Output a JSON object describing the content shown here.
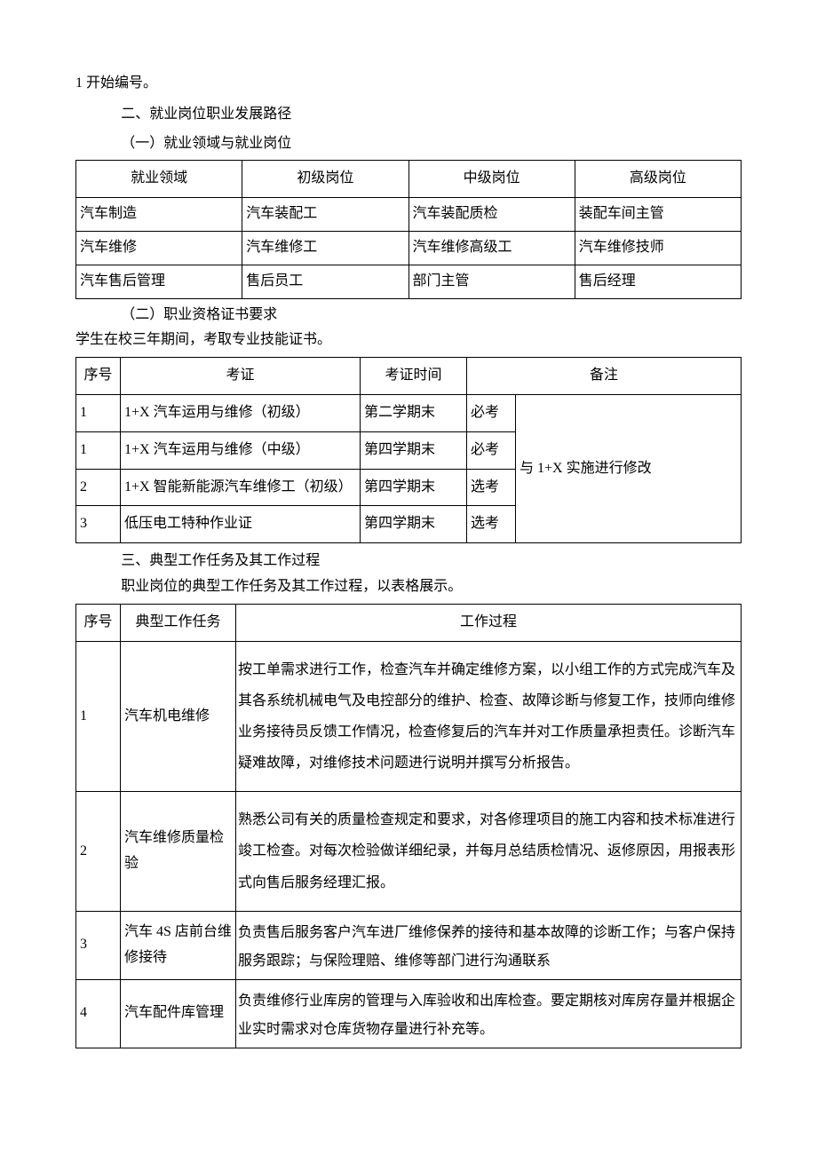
{
  "text": {
    "line1": "1 开始编号。",
    "heading2": "二、就业岗位职业发展路径",
    "sub21": "（一）就业领域与就业岗位",
    "sub22": "（二）职业资格证书要求",
    "sub22_note": "学生在校三年期间，考取专业技能证书。",
    "heading3": "三、典型工作任务及其工作过程",
    "heading3_note": "职业岗位的典型工作任务及其工作过程，以表格展示。"
  },
  "table1": {
    "headers": [
      "就业领域",
      "初级岗位",
      "中级岗位",
      "高级岗位"
    ],
    "rows": [
      [
        "汽车制造",
        "汽车装配工",
        "汽车装配质检",
        "装配车间主管"
      ],
      [
        "汽车维修",
        "汽车维修工",
        "汽车维修高级工",
        "汽车维修技师"
      ],
      [
        "汽车售后管理",
        "售后员工",
        "部门主管",
        "售后经理"
      ]
    ]
  },
  "table2": {
    "headers": [
      "序号",
      "考证",
      "考证时间",
      "备注"
    ],
    "note_merge": "与 1+X 实施进行修改",
    "rows": [
      {
        "seq": "1",
        "cert": "1+X 汽车运用与维修（初级）",
        "time": "第二学期末",
        "req": "必考"
      },
      {
        "seq": "1",
        "cert": "1+X 汽车运用与维修（中级）",
        "time": "第四学期末",
        "req": "必考"
      },
      {
        "seq": "2",
        "cert": "1+X 智能新能源汽车维修工（初级）",
        "time": "第四学期末",
        "req": "选考"
      },
      {
        "seq": "3",
        "cert": "低压电工特种作业证",
        "time": "第四学期末",
        "req": "选考"
      }
    ]
  },
  "table3": {
    "headers": [
      "序号",
      "典型工作任务",
      "工作过程"
    ],
    "rows": [
      {
        "seq": "1",
        "task": "汽车机电维修",
        "proc": "按工单需求进行工作，检查汽车并确定维修方案，以小组工作的方式完成汽车及其各系统机械电气及电控部分的维护、检查、故障诊断与修复工作，技师向维修业务接待员反馈工作情况，检查修复后的汽车并对工作质量承担责任。诊断汽车疑难故障，对维修技术问题进行说明并撰写分析报告。"
      },
      {
        "seq": "2",
        "task": "汽车维修质量检验",
        "proc": "熟悉公司有关的质量检查规定和要求，对各修理项目的施工内容和技术标准进行竣工检查。对每次检验做详细纪录，并每月总结质检情况、返修原因，用报表形式向售后服务经理汇报。"
      },
      {
        "seq": "3",
        "task": "汽车 4S 店前台维修接待",
        "proc": "负责售后服务客户汽车进厂维修保养的接待和基本故障的诊断工作；与客户保持服务跟踪；与保险理赔、维修等部门进行沟通联系"
      },
      {
        "seq": "4",
        "task": "汽车配件库管理",
        "proc": "负责维修行业库房的管理与入库验收和出库检查。要定期核对库房存量并根据企业实时需求对仓库货物存量进行补充等。"
      }
    ]
  }
}
